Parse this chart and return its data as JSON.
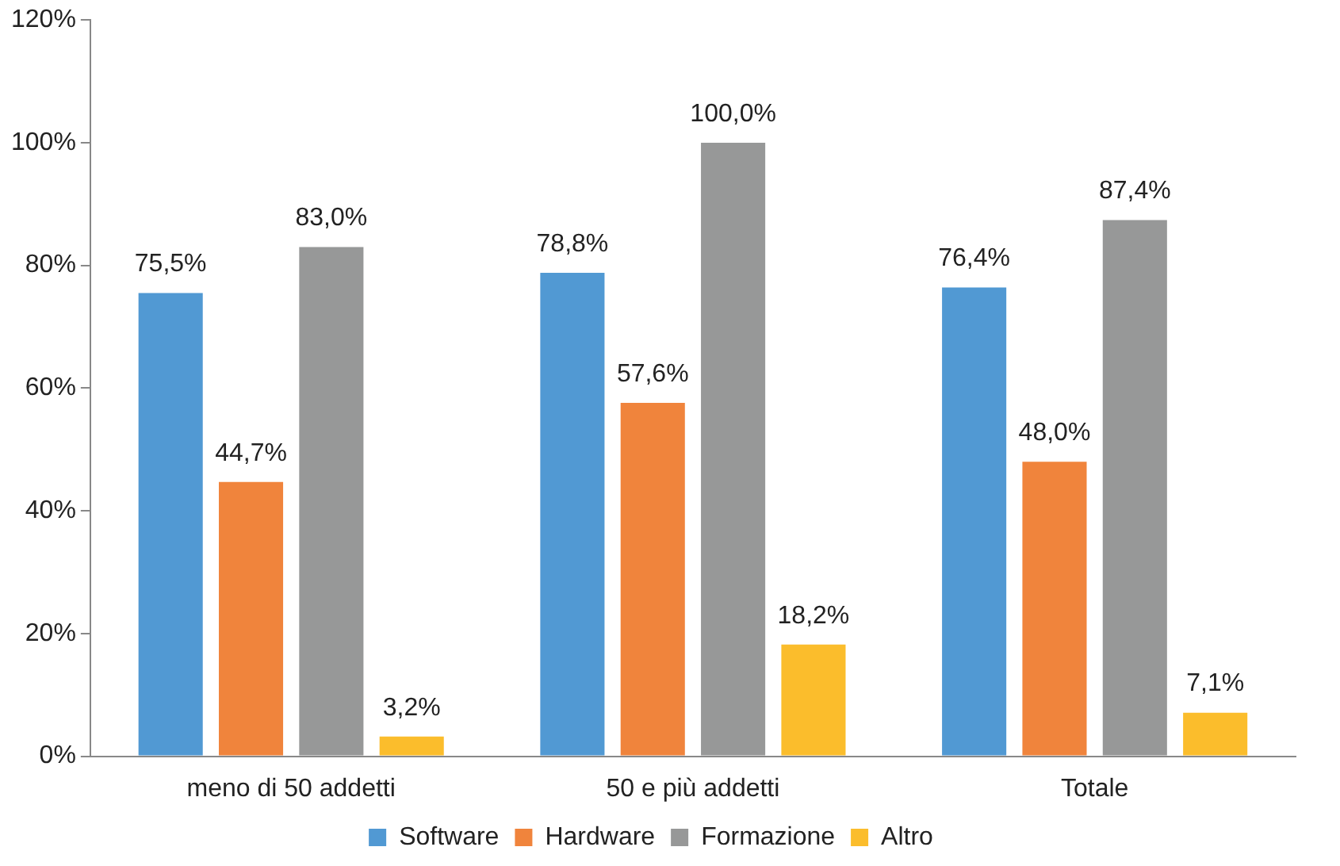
{
  "chart_data": {
    "type": "bar",
    "categories": [
      "meno di 50 addetti",
      "50 e più addetti",
      "Totale"
    ],
    "series": [
      {
        "name": "Software",
        "color": "#5199d3",
        "values": [
          75.5,
          78.8,
          76.4
        ],
        "value_labels": [
          "75,5%",
          "78,8%",
          "76,4%"
        ]
      },
      {
        "name": "Hardware",
        "color": "#f0843c",
        "values": [
          44.7,
          57.6,
          48.0
        ],
        "value_labels": [
          "44,7%",
          "57,6%",
          "48,0%"
        ]
      },
      {
        "name": "Formazione",
        "color": "#979898",
        "values": [
          83.0,
          100.0,
          87.4
        ],
        "value_labels": [
          "83,0%",
          "100,0%",
          "87,4%"
        ]
      },
      {
        "name": "Altro",
        "color": "#fbbd2c",
        "values": [
          3.2,
          18.2,
          7.1
        ],
        "value_labels": [
          "3,2%",
          "18,2%",
          "7,1%"
        ]
      }
    ],
    "ylim": [
      0,
      120
    ],
    "yticks": [
      {
        "value": 0,
        "label": "0%"
      },
      {
        "value": 20,
        "label": "20%"
      },
      {
        "value": 40,
        "label": "40%"
      },
      {
        "value": 60,
        "label": "60%"
      },
      {
        "value": 80,
        "label": "80%"
      },
      {
        "value": 100,
        "label": "100%"
      },
      {
        "value": 120,
        "label": "120%"
      }
    ],
    "grid": false,
    "legend": "bottom"
  }
}
